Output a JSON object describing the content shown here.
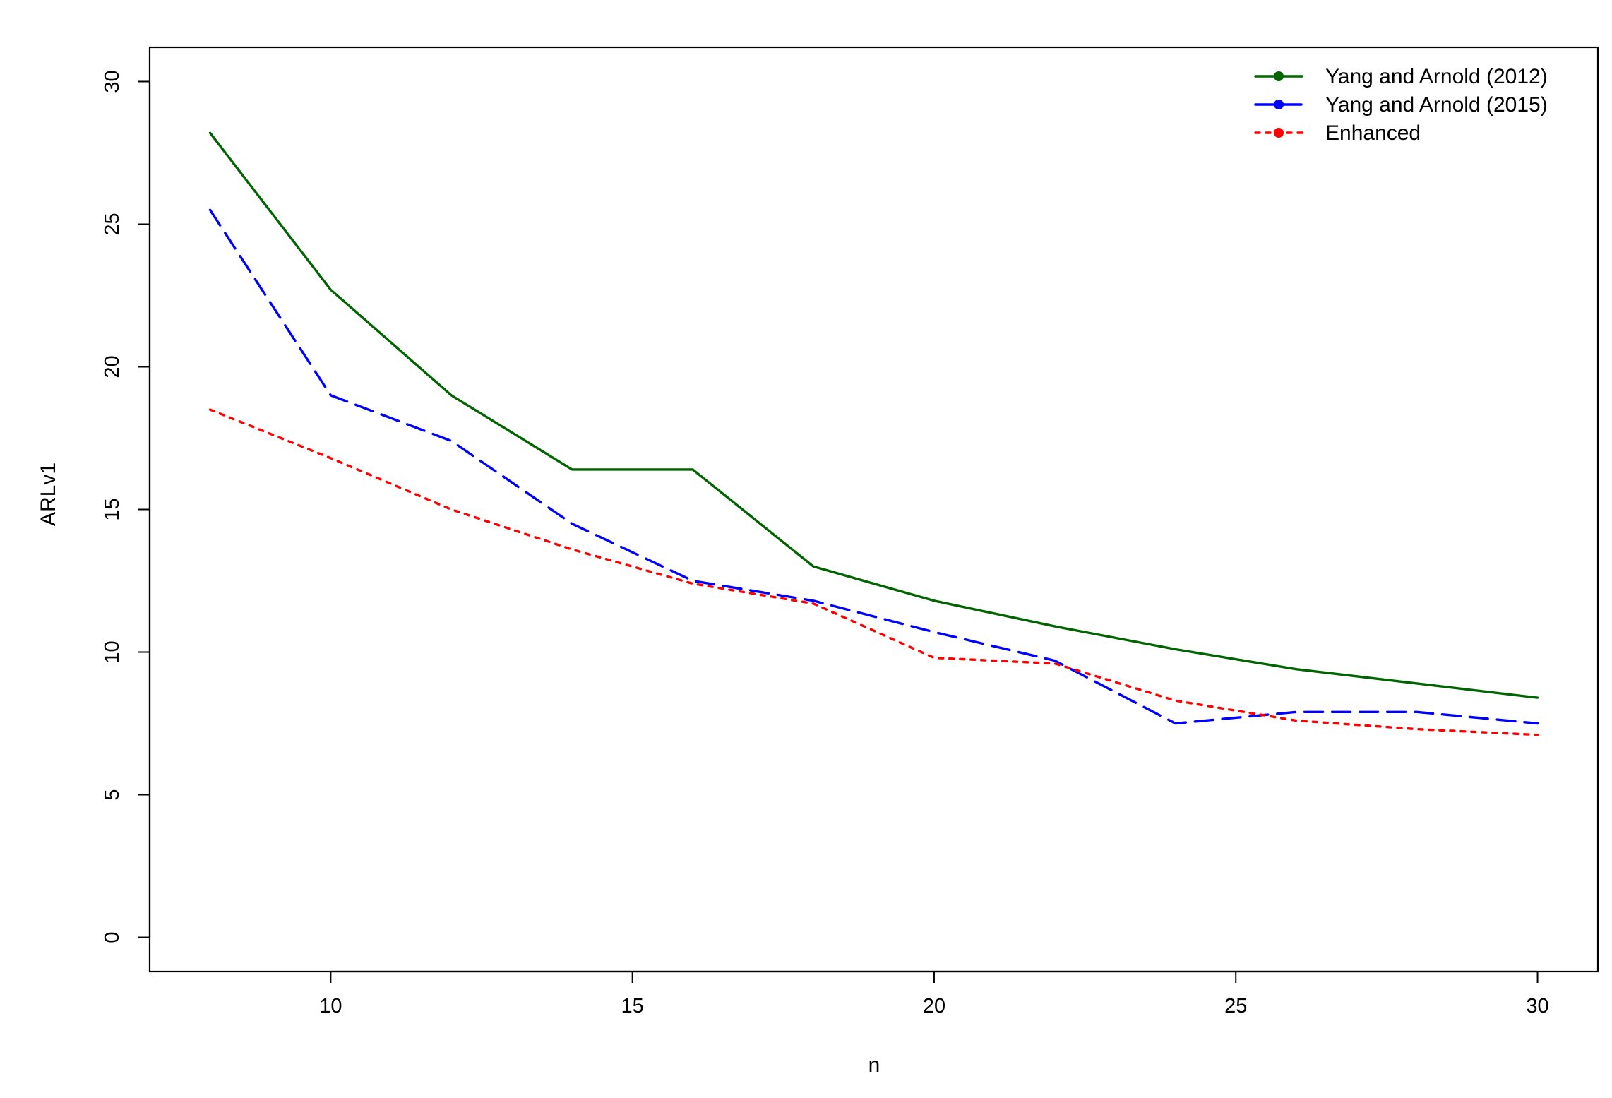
{
  "chart_data": {
    "type": "line",
    "title": "",
    "xlabel": "n",
    "ylabel": "ARLv1",
    "xlim": [
      7,
      31
    ],
    "ylim": [
      -1.2,
      31.2
    ],
    "x_ticks": [
      10,
      15,
      20,
      25,
      30
    ],
    "y_ticks": [
      0,
      5,
      10,
      15,
      20,
      25,
      30
    ],
    "x": [
      8,
      10,
      12,
      14,
      16,
      18,
      20,
      22,
      24,
      26,
      28,
      30
    ],
    "series": [
      {
        "name": "Yang and Arnold (2012)",
        "color": "#006400",
        "line_style": "solid",
        "values": [
          28.2,
          22.7,
          19.0,
          16.4,
          16.4,
          13.0,
          11.8,
          10.9,
          10.1,
          9.4,
          8.9,
          8.4
        ]
      },
      {
        "name": "Yang and Arnold (2015)",
        "color": "#0000FF",
        "line_style": "dashed",
        "values": [
          25.5,
          19.0,
          17.4,
          14.5,
          12.5,
          11.8,
          10.7,
          9.7,
          7.5,
          7.9,
          7.9,
          7.5
        ]
      },
      {
        "name": "Enhanced",
        "color": "#FF0000",
        "line_style": "dotted",
        "values": [
          18.5,
          16.8,
          15.0,
          13.6,
          12.4,
          11.7,
          9.8,
          9.6,
          8.3,
          7.6,
          7.3,
          7.1
        ]
      }
    ],
    "legend_position": "top-right",
    "grid": false
  }
}
